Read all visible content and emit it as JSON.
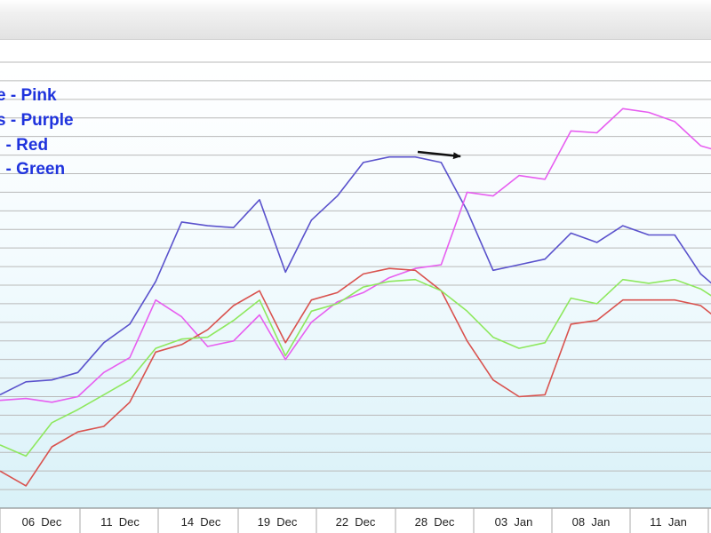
{
  "chart_data": {
    "type": "line",
    "title": "",
    "xlabel": "",
    "ylabel": "",
    "x_tick_labels": [
      "06  Dec",
      "11  Dec",
      "14  Dec",
      "19  Dec",
      "22  Dec",
      "28  Dec",
      "03  Jan",
      "08  Jan",
      "11  Jan"
    ],
    "ylim": [
      0,
      24
    ],
    "y_gridlines": 24,
    "grid": "horizontal",
    "legend": {
      "placement": "top-left",
      "entries": [
        "e - Pink",
        "s - Purple",
        "  - Red",
        "  - Green"
      ]
    },
    "series": [
      {
        "name": "Purple",
        "color": "#5a52cc",
        "values": [
          6.1,
          6.8,
          6.9,
          7.3,
          8.9,
          9.9,
          12.2,
          15.4,
          15.2,
          15.1,
          16.6,
          12.7,
          15.5,
          16.8,
          18.6,
          18.9,
          18.9,
          18.6,
          16.0,
          12.8,
          13.1,
          13.4,
          14.8,
          14.3,
          15.2,
          14.7,
          14.7,
          12.6,
          11.4
        ]
      },
      {
        "name": "Pink",
        "color": "#e75ef0",
        "values": [
          5.8,
          5.9,
          5.7,
          6.0,
          7.3,
          8.1,
          11.2,
          10.3,
          8.7,
          9.0,
          10.4,
          8.0,
          10.0,
          11.1,
          11.6,
          12.4,
          12.9,
          13.1,
          17.0,
          16.8,
          17.9,
          17.7,
          20.3,
          20.2,
          21.5,
          21.3,
          20.8,
          19.5,
          19.1
        ]
      },
      {
        "name": "Red",
        "color": "#d9524e",
        "values": [
          2.0,
          1.2,
          3.3,
          4.1,
          4.4,
          5.7,
          8.4,
          8.8,
          9.6,
          10.9,
          11.7,
          8.9,
          11.2,
          11.6,
          12.6,
          12.9,
          12.8,
          11.7,
          9.0,
          6.9,
          6.0,
          6.1,
          9.9,
          10.1,
          11.2,
          11.2,
          11.2,
          10.9,
          9.8
        ]
      },
      {
        "name": "Green",
        "color": "#8ee85e",
        "values": [
          3.4,
          2.8,
          4.6,
          5.3,
          6.1,
          6.9,
          8.6,
          9.1,
          9.2,
          10.1,
          11.2,
          8.2,
          10.6,
          11.0,
          11.9,
          12.2,
          12.3,
          11.7,
          10.6,
          9.2,
          8.6,
          8.9,
          11.3,
          11.0,
          12.3,
          12.1,
          12.3,
          11.8,
          10.9
        ]
      }
    ],
    "annotation": "arrow"
  }
}
